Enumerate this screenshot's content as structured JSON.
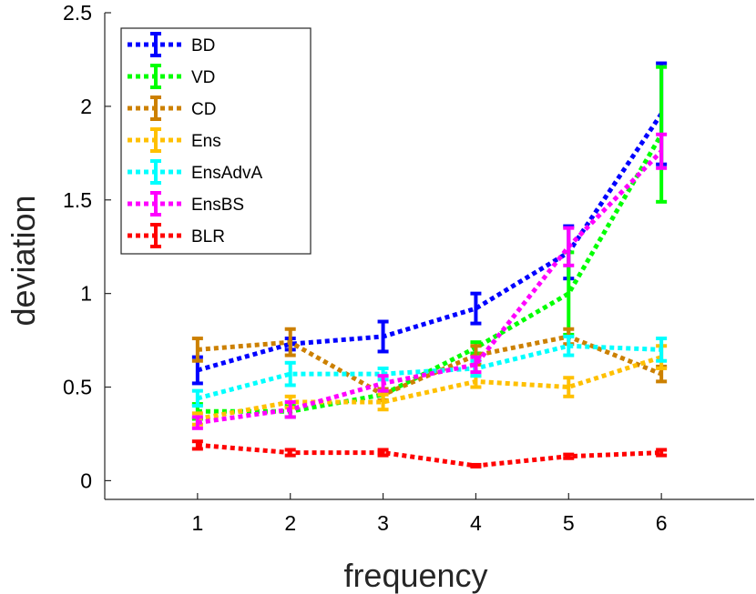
{
  "chart_data": {
    "type": "line",
    "xlabel": "frequency",
    "ylabel": "deviation",
    "x": [
      1,
      2,
      3,
      4,
      5,
      6
    ],
    "xlim": [
      0,
      7
    ],
    "ylim": [
      -0.1,
      2.5
    ],
    "xticks": [
      "1",
      "2",
      "3",
      "4",
      "5",
      "6"
    ],
    "yticks": [
      "0",
      "0.5",
      "1",
      "1.5",
      "2",
      "2.5"
    ],
    "ytick_values": [
      0,
      0.5,
      1,
      1.5,
      2,
      2.5
    ],
    "legend_position": "top-left",
    "series": [
      {
        "name": "BD",
        "color": "#0000ff",
        "line": "dotted",
        "values": [
          0.59,
          0.73,
          0.77,
          0.92,
          1.22,
          1.96
        ],
        "errors": [
          0.07,
          0.03,
          0.08,
          0.08,
          0.14,
          0.27
        ]
      },
      {
        "name": "VD",
        "color": "#00ff00",
        "line": "dotted",
        "values": [
          0.37,
          0.37,
          0.46,
          0.71,
          1.0,
          1.85
        ],
        "errors": [
          0.04,
          0.03,
          0.03,
          0.03,
          0.22,
          0.36
        ]
      },
      {
        "name": "CD",
        "color": "#cc8000",
        "line": "dotted",
        "values": [
          0.7,
          0.74,
          0.46,
          0.67,
          0.77,
          0.57
        ],
        "errors": [
          0.06,
          0.07,
          0.03,
          0.05,
          0.04,
          0.04
        ]
      },
      {
        "name": "Ens",
        "color": "#ffc000",
        "line": "dotted",
        "values": [
          0.33,
          0.42,
          0.42,
          0.53,
          0.5,
          0.66
        ],
        "errors": [
          0.03,
          0.03,
          0.04,
          0.03,
          0.05,
          0.06
        ]
      },
      {
        "name": "EnsAdvA",
        "color": "#00ffff",
        "line": "dotted",
        "values": [
          0.44,
          0.57,
          0.57,
          0.6,
          0.72,
          0.7
        ],
        "errors": [
          0.04,
          0.06,
          0.03,
          0.04,
          0.05,
          0.06
        ]
      },
      {
        "name": "EnsBS",
        "color": "#ff00ff",
        "line": "dotted",
        "values": [
          0.31,
          0.38,
          0.52,
          0.62,
          1.25,
          1.76
        ],
        "errors": [
          0.03,
          0.04,
          0.04,
          0.04,
          0.1,
          0.09
        ]
      },
      {
        "name": "BLR",
        "color": "#ff0000",
        "line": "dotted",
        "values": [
          0.19,
          0.15,
          0.15,
          0.08,
          0.13,
          0.15
        ],
        "errors": [
          0.02,
          0.015,
          0.015,
          0.005,
          0.01,
          0.015
        ]
      }
    ]
  }
}
